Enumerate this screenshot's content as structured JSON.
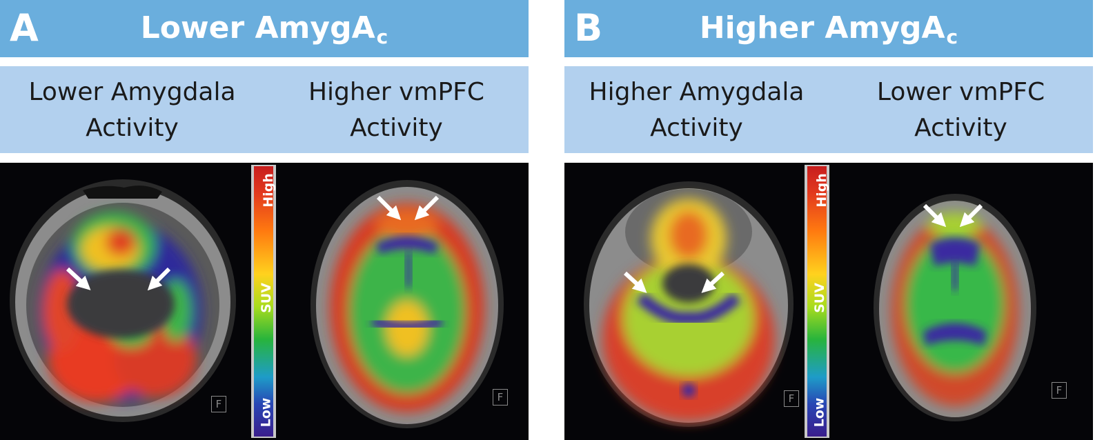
{
  "panels": [
    {
      "letter": "A",
      "title_main": "Lower AmygA",
      "title_sub": "c",
      "left_label": [
        "Lower Amygdala",
        "Activity"
      ],
      "right_label": [
        "Higher vmPFC",
        "Activity"
      ],
      "colorbar": {
        "high": "High",
        "mid": "SUV",
        "low": "Low"
      },
      "orientation_marks": [
        "F",
        "F"
      ]
    },
    {
      "letter": "B",
      "title_main": "Higher AmygA",
      "title_sub": "c",
      "left_label": [
        "Higher Amygdala",
        "Activity"
      ],
      "right_label": [
        "Lower vmPFC",
        "Activity"
      ],
      "colorbar": {
        "high": "High",
        "mid": "SUV",
        "low": "Low"
      },
      "orientation_marks": [
        "F",
        "F"
      ]
    }
  ],
  "colors": {
    "header_bg": "#6aaedd",
    "subheader_bg": "#b2d0ee",
    "image_bg": "#050508",
    "scale_high": "#c81e1e",
    "scale_mid": "#ffd21e",
    "scale_low": "#3a1e8c"
  }
}
